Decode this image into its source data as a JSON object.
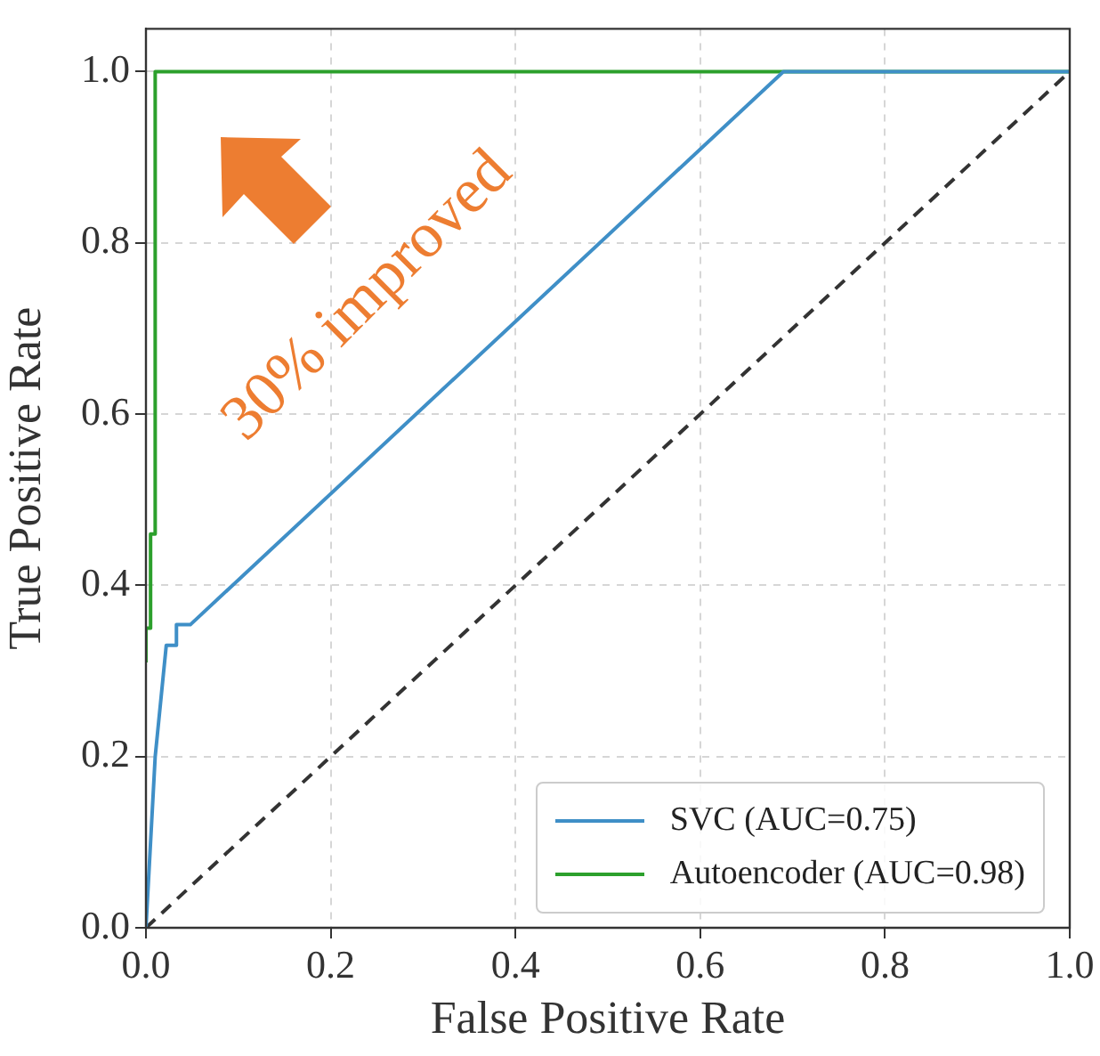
{
  "chart_data": {
    "type": "line",
    "xlabel": "False Positive Rate",
    "ylabel": "True Positive Rate",
    "annotations": [
      "30% improved"
    ],
    "series": [
      {
        "name": "SVC  (AUC=0.75)",
        "color": "#3f8fc7",
        "x": [
          0,
          0.01,
          0.022,
          0.033,
          0.033,
          0.048,
          0.69,
          1.0
        ],
        "values": [
          0,
          0.2,
          0.33,
          0.33,
          0.354,
          0.354,
          1.0,
          1.0
        ]
      },
      {
        "name": "Autoencoder (AUC=0.98)",
        "color": "#2ca02c",
        "x": [
          0,
          0,
          0.005,
          0.005,
          0.01,
          0.01,
          1.0
        ],
        "values": [
          0.31,
          0.35,
          0.35,
          0.46,
          0.46,
          1.0,
          1.0
        ]
      },
      {
        "color": "#333333",
        "line_style": "dashed",
        "x": [
          0,
          1
        ],
        "values": [
          0,
          1
        ]
      }
    ],
    "xlim": [
      0,
      1
    ],
    "ylim": [
      0,
      1.05
    ],
    "xticks": [
      {
        "value": 0,
        "label": "0.0"
      },
      {
        "value": 0.2,
        "label": "0.2"
      },
      {
        "value": 0.4,
        "label": "0.4"
      },
      {
        "value": 0.6,
        "label": "0.6"
      },
      {
        "value": 0.8,
        "label": "0.8"
      },
      {
        "value": 1,
        "label": "1.0"
      }
    ],
    "yticks": [
      {
        "value": 0,
        "label": "0.0"
      },
      {
        "value": 0.2,
        "label": "0.2"
      },
      {
        "value": 0.4,
        "label": "0.4"
      },
      {
        "value": 0.6,
        "label": "0.6"
      },
      {
        "value": 0.8,
        "label": "0.8"
      },
      {
        "value": 1,
        "label": "1.0"
      }
    ],
    "grid": true,
    "legend": "bottom right"
  }
}
